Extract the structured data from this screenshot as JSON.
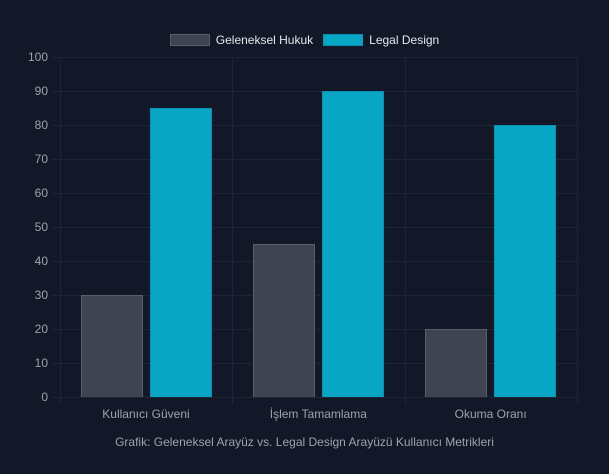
{
  "chart_data": {
    "type": "bar",
    "title": "",
    "caption": "Grafik: Geleneksel Arayüz vs. Legal Design Arayüzü Kullanıcı Metrikleri",
    "categories": [
      "Kullanıcı Güveni",
      "İşlem Tamamlama",
      "Okuma Oranı"
    ],
    "series": [
      {
        "name": "Geleneksel Hukuk",
        "values": [
          30,
          45,
          20
        ],
        "color": "#404452",
        "border": "#5a5e6b"
      },
      {
        "name": "Legal Design",
        "values": [
          85,
          90,
          80
        ],
        "color": "#06a6c4",
        "border": "#0891b2"
      }
    ],
    "xlabel": "",
    "ylabel": "",
    "ylim": [
      0,
      100
    ],
    "yticks": [
      0,
      10,
      20,
      30,
      40,
      50,
      60,
      70,
      80,
      90,
      100
    ],
    "grid": true,
    "legend_position": "top"
  },
  "legend": {
    "items": [
      {
        "label": "Geleneksel Hukuk"
      },
      {
        "label": "Legal Design"
      }
    ]
  }
}
